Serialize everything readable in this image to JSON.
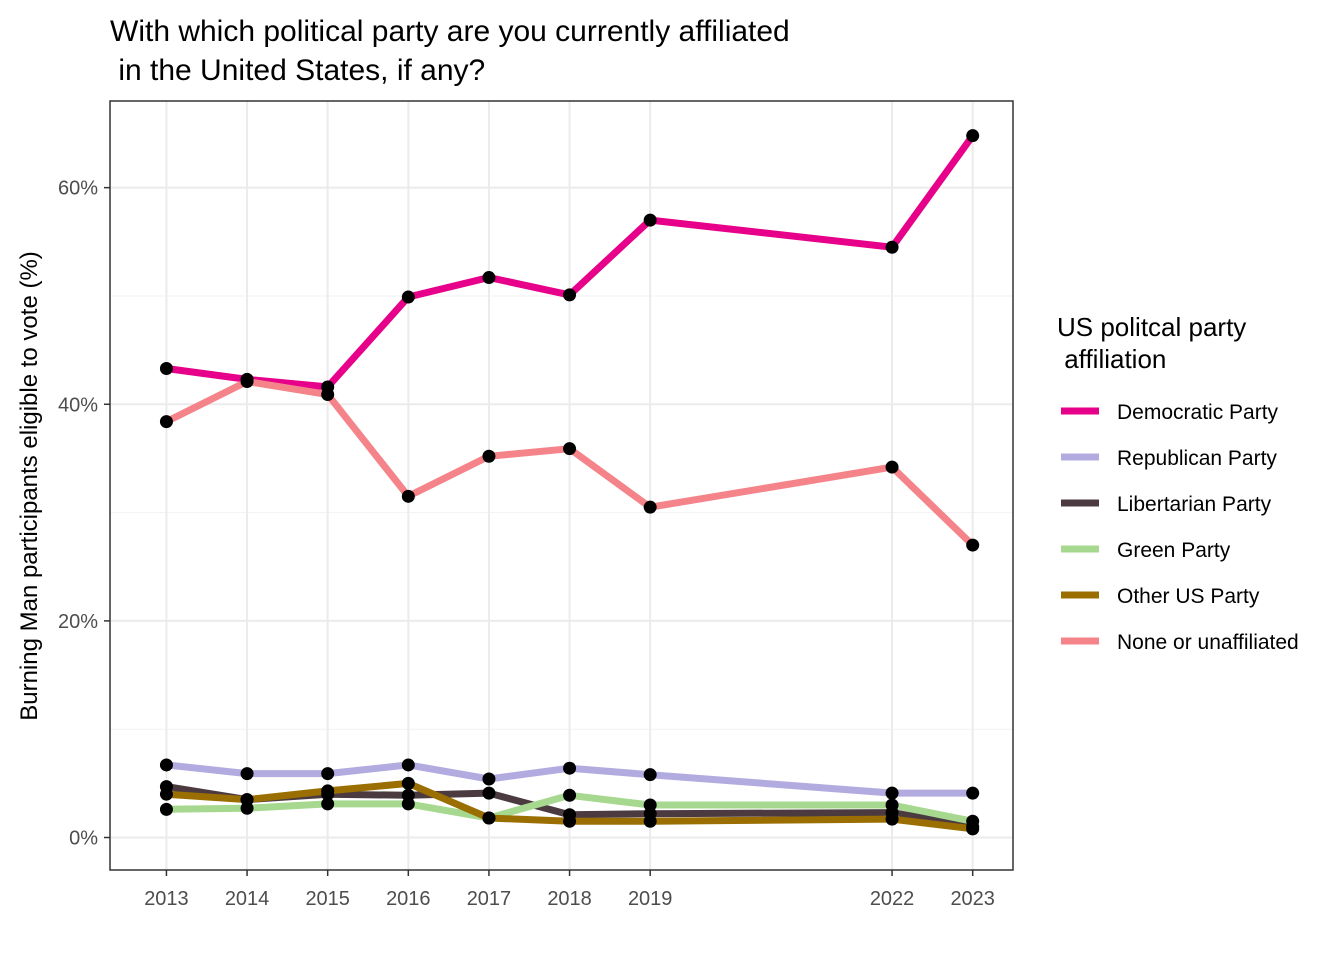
{
  "chart_data": {
    "type": "line",
    "title_lines": [
      "With which political party are you currently affiliated",
      " in the United States, if any?"
    ],
    "xlabel": "",
    "ylabel": "Burning Man participants eligible to vote (%)",
    "x": [
      2013,
      2014,
      2015,
      2016,
      2017,
      2018,
      2019,
      2022,
      2023
    ],
    "xlim": [
      2012.3,
      2023.5
    ],
    "ylim": [
      -3,
      68
    ],
    "y_ticks": [
      0,
      20,
      40,
      60
    ],
    "y_tick_labels": [
      "0%",
      "20%",
      "40%",
      "60%"
    ],
    "x_tick_labels": [
      "2013",
      "2014",
      "2015",
      "2016",
      "2017",
      "2018",
      "2019",
      "2022",
      "2023"
    ],
    "grid": true,
    "legend": {
      "title_lines": [
        "US politcal party",
        " affiliation"
      ],
      "position": "right"
    },
    "series": [
      {
        "name": "Democratic Party",
        "color": "#e7008a",
        "values": [
          43.3,
          42.3,
          41.6,
          49.9,
          51.7,
          50.1,
          57.0,
          54.5,
          64.8
        ]
      },
      {
        "name": "Republican Party",
        "color": "#b2abe0",
        "values": [
          6.7,
          5.9,
          5.9,
          6.7,
          5.4,
          6.4,
          5.8,
          4.1,
          4.1
        ]
      },
      {
        "name": "Libertarian Party",
        "color": "#4b3b40",
        "values": [
          4.7,
          3.5,
          4.0,
          3.9,
          4.1,
          2.1,
          2.2,
          2.3,
          1.0
        ]
      },
      {
        "name": "Green Party",
        "color": "#a6d98f",
        "values": [
          2.6,
          2.7,
          3.1,
          3.1,
          1.8,
          3.9,
          3.0,
          3.0,
          1.5
        ]
      },
      {
        "name": "Other US Party",
        "color": "#9a6e00",
        "values": [
          4.0,
          3.5,
          4.3,
          5.0,
          1.8,
          1.5,
          1.5,
          1.7,
          0.8
        ]
      },
      {
        "name": "None or unaffiliated",
        "color": "#f4848a",
        "values": [
          38.4,
          42.1,
          40.9,
          31.5,
          35.2,
          35.9,
          30.5,
          34.2,
          27.0
        ]
      }
    ]
  }
}
